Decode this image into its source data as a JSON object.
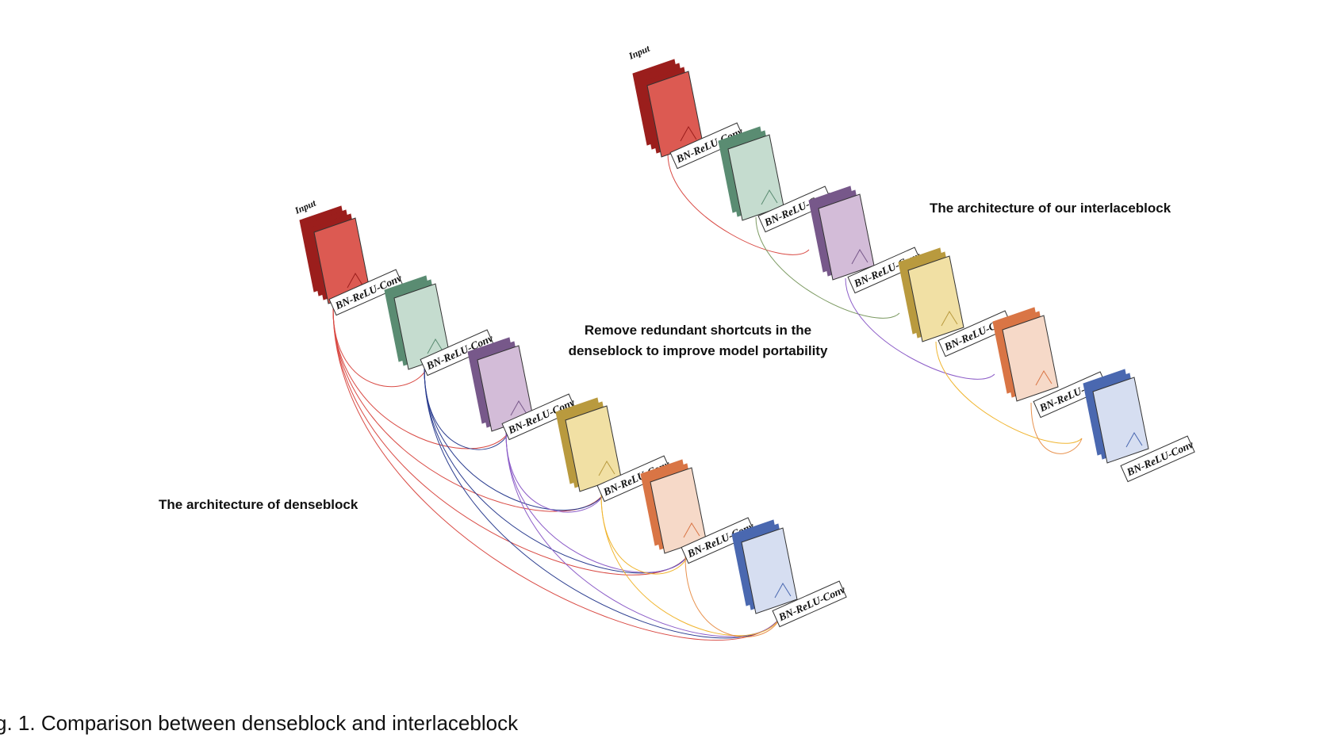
{
  "denseblock": {
    "title": "The architecture of denseblock",
    "input_label": "Input",
    "layer_label": "BN-ReLU-Conv"
  },
  "interlaceblock": {
    "title": "The architecture of our interlaceblock",
    "input_label": "Input",
    "layer_label": "BN-ReLU-Conv"
  },
  "middle_note": {
    "line1": "Remove redundant shortcuts in the",
    "line2": "denseblock to improve model portability"
  },
  "caption": "g. 1.   Comparison between denseblock and interlaceblock",
  "colors": {
    "red": "#dc5a52",
    "red_dark": "#9b1e1c",
    "green": "#c5dccf",
    "green_dark": "#5a8c72",
    "purple": "#d3bcd8",
    "purple_dark": "#77588a",
    "yellow": "#f1e0a4",
    "yellow_dark": "#b99a3e",
    "orange": "#f6d9c8",
    "orange_dark": "#d97545",
    "blue": "#d6def1",
    "blue_dark": "#4a68b0",
    "curve_red": "#d94b45",
    "curve_green": "#7c9a62",
    "curve_navy": "#2b3d8f",
    "curve_purple": "#8d5ec8",
    "curve_yellow": "#f0b530",
    "curve_orange": "#e8924e"
  }
}
